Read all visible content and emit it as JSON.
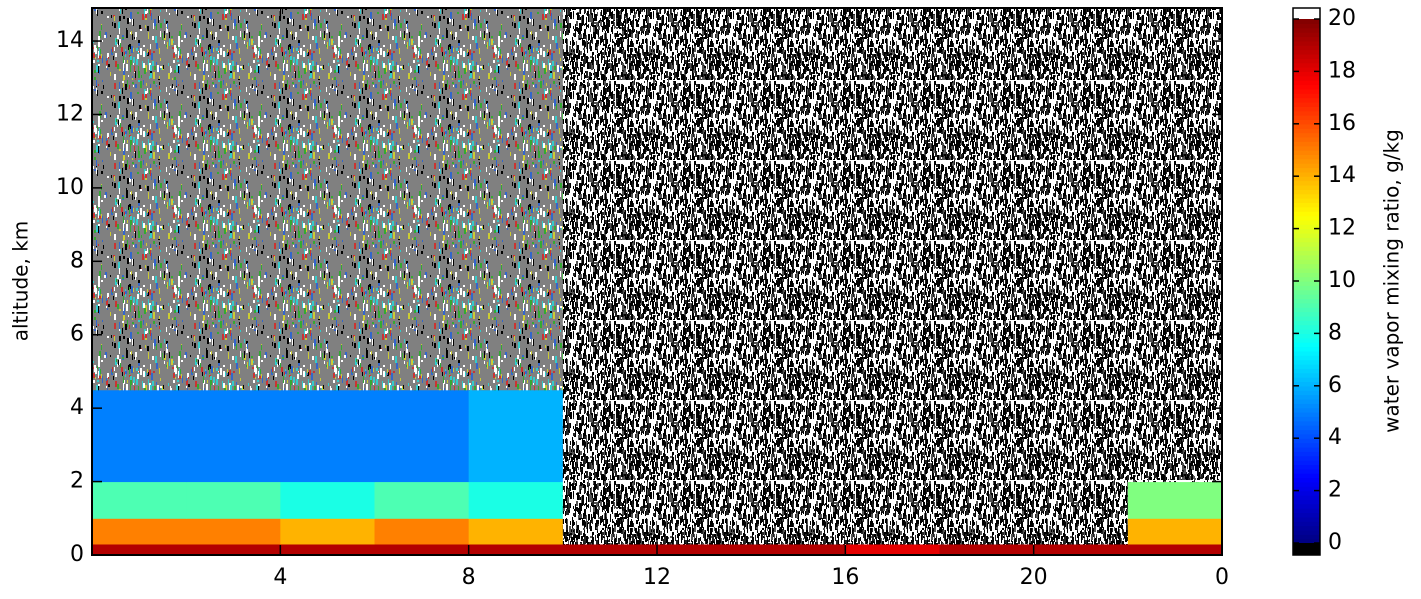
{
  "chart_data": {
    "type": "heatmap",
    "x_label": null,
    "y_label": "altitude, km",
    "colorbar_label": "water vapor mixing ratio, g/kg",
    "x_edges": [
      0,
      2,
      4,
      6,
      8,
      10,
      12,
      14,
      16,
      18,
      20,
      22,
      24
    ],
    "y_edges": [
      0,
      0.3,
      1,
      2,
      4.5,
      14.9
    ],
    "z": [
      [
        19,
        19,
        19,
        19,
        19,
        19,
        19,
        19,
        18,
        19,
        19,
        19
      ],
      [
        15,
        15,
        14,
        15,
        14,
        null,
        null,
        null,
        null,
        null,
        null,
        14
      ],
      [
        9,
        9,
        8,
        9,
        8,
        null,
        null,
        null,
        null,
        null,
        null,
        10
      ],
      [
        5,
        5,
        5,
        5,
        6,
        null,
        null,
        null,
        null,
        null,
        null,
        null
      ],
      [
        null,
        null,
        null,
        null,
        null,
        null,
        null,
        null,
        null,
        null,
        null,
        null
      ]
    ],
    "xlim": [
      0,
      24
    ],
    "ylim": [
      0,
      14.9
    ],
    "xticks": [
      4,
      8,
      12,
      16,
      20,
      {
        "value": 24,
        "label": "0"
      }
    ],
    "yticks": [
      0,
      2,
      4,
      6,
      8,
      10,
      12,
      14
    ],
    "clim": [
      0,
      20
    ],
    "cticks": [
      0,
      2,
      4,
      6,
      8,
      10,
      12,
      14,
      16,
      18,
      20
    ],
    "colormap": "jet",
    "under_color": "#000000",
    "over_color": "#ffffff"
  }
}
